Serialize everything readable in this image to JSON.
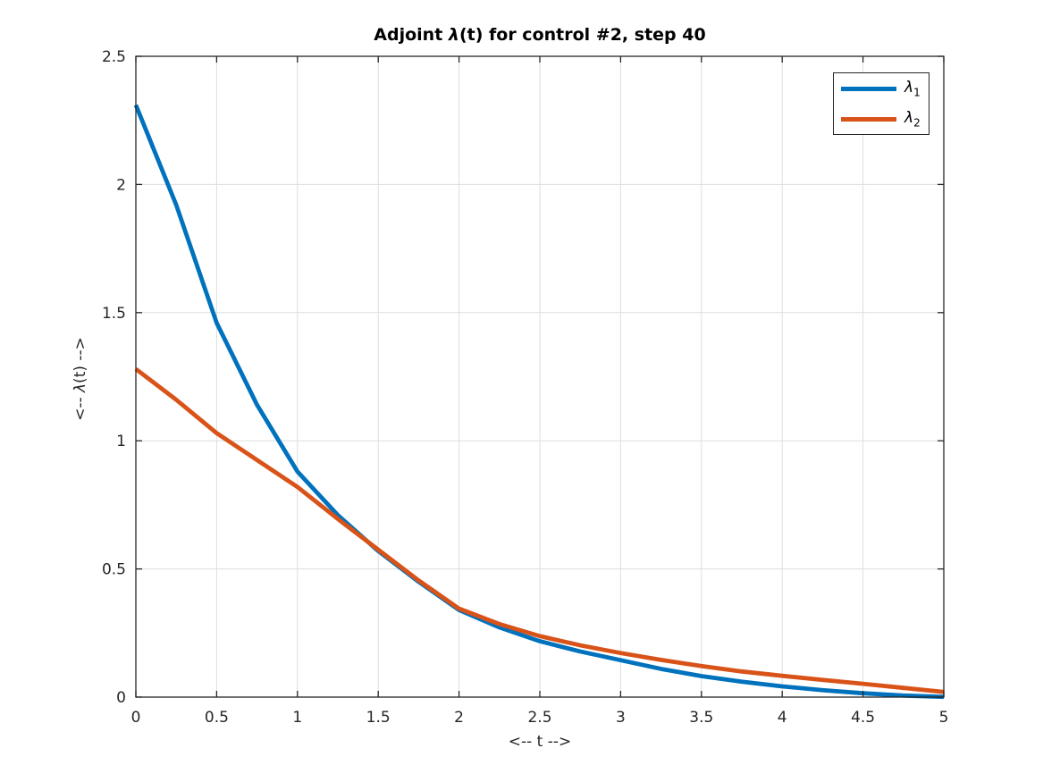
{
  "figure": {
    "title": {
      "prefix": "Adjoint ",
      "symbol": "λ",
      "suffix": "(t) for control #2, step 40"
    },
    "xlabel": "<-- t -->",
    "ylabel": {
      "prefix": "<-- ",
      "symbol": "λ",
      "suffix": "(t) -->"
    }
  },
  "legend": {
    "items": [
      {
        "symbol": "λ",
        "sub": "1",
        "color": "#0072BD"
      },
      {
        "symbol": "λ",
        "sub": "2",
        "color": "#D95319"
      }
    ]
  },
  "chart_data": {
    "type": "line",
    "title": "Adjoint λ(t) for control #2, step 40",
    "xlabel": "<-- t -->",
    "ylabel": "<-- λ(t) -->",
    "xlim": [
      0,
      5
    ],
    "ylim": [
      0,
      2.5
    ],
    "xticks": {
      "values": [
        0,
        0.5,
        1,
        1.5,
        2,
        2.5,
        3,
        3.5,
        4,
        4.5,
        5
      ],
      "labels": [
        "0",
        "0.5",
        "1",
        "1.5",
        "2",
        "2.5",
        "3",
        "3.5",
        "4",
        "4.5",
        "5"
      ]
    },
    "yticks": {
      "values": [
        0,
        0.5,
        1,
        1.5,
        2,
        2.5
      ],
      "labels": [
        "0",
        "0.5",
        "1",
        "1.5",
        "2",
        "2.5"
      ]
    },
    "grid": true,
    "legend_position": "northeast",
    "x": [
      0,
      0.25,
      0.5,
      0.75,
      1.0,
      1.25,
      1.5,
      1.75,
      2.0,
      2.25,
      2.5,
      2.75,
      3.0,
      3.25,
      3.5,
      3.75,
      4.0,
      4.25,
      4.5,
      4.75,
      5.0
    ],
    "series": [
      {
        "name": "λ_1",
        "color": "#0072BD",
        "values": [
          2.31,
          1.92,
          1.46,
          1.14,
          0.88,
          0.71,
          0.57,
          0.45,
          0.34,
          0.272,
          0.218,
          0.178,
          0.144,
          0.11,
          0.082,
          0.06,
          0.042,
          0.027,
          0.015,
          0.006,
          0.001
        ]
      },
      {
        "name": "λ_2",
        "color": "#D95319",
        "values": [
          1.28,
          1.16,
          1.03,
          0.925,
          0.82,
          0.695,
          0.575,
          0.455,
          0.345,
          0.285,
          0.238,
          0.202,
          0.172,
          0.145,
          0.121,
          0.1,
          0.083,
          0.067,
          0.052,
          0.036,
          0.02
        ]
      }
    ],
    "colors": {
      "axis": "#262626",
      "grid": "#dedede",
      "background": "#ffffff"
    },
    "line_width": 4.8
  }
}
